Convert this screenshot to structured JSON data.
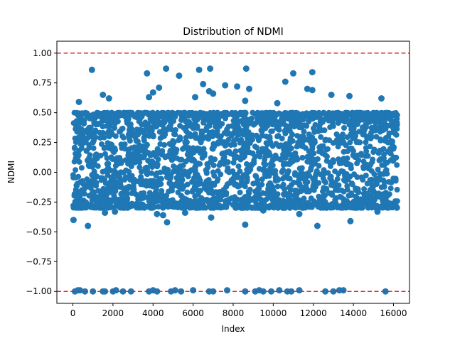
{
  "chart_data": {
    "type": "scatter",
    "title": "Distribution of NDMI",
    "xlabel": "Index",
    "ylabel": "NDMI",
    "xlim": [
      -800,
      16800
    ],
    "ylim": [
      -1.1,
      1.1
    ],
    "x_ticks": [
      0,
      2000,
      4000,
      6000,
      8000,
      10000,
      12000,
      14000,
      16000
    ],
    "y_ticks": [
      -1.0,
      -0.75,
      -0.5,
      -0.25,
      0.0,
      0.25,
      0.5,
      0.75,
      1.0
    ],
    "x_tick_labels": [
      "0",
      "2000",
      "4000",
      "6000",
      "8000",
      "10000",
      "12000",
      "14000",
      "16000"
    ],
    "y_tick_labels": [
      "−1.00",
      "−0.75",
      "−0.50",
      "−0.25",
      "0.00",
      "0.25",
      "0.50",
      "0.75",
      "1.00"
    ],
    "grid": false,
    "marker_color": "#1f77b4",
    "reference_lines": [
      {
        "y": 1.0,
        "color": "#d62728",
        "style": "dashed"
      },
      {
        "y": -1.0,
        "color": "#d62728",
        "style": "dashed"
      }
    ],
    "dense_band": {
      "x_range": [
        0,
        16200
      ],
      "y_range": [
        -0.3,
        0.5
      ],
      "note": "thousands of overlapping points"
    },
    "points": [
      {
        "x": 950,
        "y": 0.86
      },
      {
        "x": 3700,
        "y": 0.83
      },
      {
        "x": 4650,
        "y": 0.87
      },
      {
        "x": 5300,
        "y": 0.81
      },
      {
        "x": 6300,
        "y": 0.86
      },
      {
        "x": 6850,
        "y": 0.87
      },
      {
        "x": 6500,
        "y": 0.74
      },
      {
        "x": 6800,
        "y": 0.68
      },
      {
        "x": 7000,
        "y": 0.66
      },
      {
        "x": 7600,
        "y": 0.73
      },
      {
        "x": 8200,
        "y": 0.72
      },
      {
        "x": 8650,
        "y": 0.87
      },
      {
        "x": 8800,
        "y": 0.7
      },
      {
        "x": 10600,
        "y": 0.76
      },
      {
        "x": 11000,
        "y": 0.83
      },
      {
        "x": 11700,
        "y": 0.7
      },
      {
        "x": 11950,
        "y": 0.84
      },
      {
        "x": 11950,
        "y": 0.69
      },
      {
        "x": 12900,
        "y": 0.65
      },
      {
        "x": 4000,
        "y": 0.67
      },
      {
        "x": 4300,
        "y": 0.71
      },
      {
        "x": 3800,
        "y": 0.63
      },
      {
        "x": 1500,
        "y": 0.65
      },
      {
        "x": 1800,
        "y": 0.62
      },
      {
        "x": 6100,
        "y": 0.63
      },
      {
        "x": 10200,
        "y": 0.58
      },
      {
        "x": 13800,
        "y": 0.64
      },
      {
        "x": 15400,
        "y": 0.62
      },
      {
        "x": 8600,
        "y": 0.6
      },
      {
        "x": 300,
        "y": 0.59
      },
      {
        "x": 30,
        "y": -0.4
      },
      {
        "x": 750,
        "y": -0.45
      },
      {
        "x": 4700,
        "y": -0.42
      },
      {
        "x": 8600,
        "y": -0.44
      },
      {
        "x": 12200,
        "y": -0.45
      },
      {
        "x": 13850,
        "y": -0.41
      },
      {
        "x": 4200,
        "y": -0.35
      },
      {
        "x": 4500,
        "y": -0.36
      },
      {
        "x": 6900,
        "y": -0.38
      },
      {
        "x": 5600,
        "y": -0.34
      },
      {
        "x": 2100,
        "y": -0.33
      },
      {
        "x": 9500,
        "y": -0.32
      },
      {
        "x": 11300,
        "y": -0.35
      },
      {
        "x": 15200,
        "y": -0.33
      },
      {
        "x": 1600,
        "y": -0.34
      },
      {
        "x": 100,
        "y": -1.0
      },
      {
        "x": 250,
        "y": -0.99
      },
      {
        "x": 350,
        "y": -0.99
      },
      {
        "x": 600,
        "y": -1.0
      },
      {
        "x": 1000,
        "y": -1.0
      },
      {
        "x": 1500,
        "y": -1.0
      },
      {
        "x": 1600,
        "y": -1.0
      },
      {
        "x": 2000,
        "y": -1.0
      },
      {
        "x": 2150,
        "y": -0.99
      },
      {
        "x": 2500,
        "y": -1.0
      },
      {
        "x": 2900,
        "y": -1.0
      },
      {
        "x": 3800,
        "y": -1.0
      },
      {
        "x": 4000,
        "y": -0.99
      },
      {
        "x": 4200,
        "y": -1.0
      },
      {
        "x": 4900,
        "y": -1.0
      },
      {
        "x": 5100,
        "y": -0.99
      },
      {
        "x": 5400,
        "y": -1.0
      },
      {
        "x": 6000,
        "y": -0.99
      },
      {
        "x": 6800,
        "y": -1.0
      },
      {
        "x": 7000,
        "y": -1.0
      },
      {
        "x": 7700,
        "y": -0.99
      },
      {
        "x": 8600,
        "y": -1.0
      },
      {
        "x": 9100,
        "y": -1.0
      },
      {
        "x": 9300,
        "y": -0.99
      },
      {
        "x": 9500,
        "y": -1.0
      },
      {
        "x": 9900,
        "y": -1.0
      },
      {
        "x": 10300,
        "y": -0.99
      },
      {
        "x": 10700,
        "y": -1.0
      },
      {
        "x": 10900,
        "y": -1.0
      },
      {
        "x": 11300,
        "y": -0.99
      },
      {
        "x": 12600,
        "y": -1.0
      },
      {
        "x": 13000,
        "y": -1.0
      },
      {
        "x": 13300,
        "y": -0.99
      },
      {
        "x": 13500,
        "y": -0.99
      },
      {
        "x": 15600,
        "y": -1.0
      }
    ]
  }
}
